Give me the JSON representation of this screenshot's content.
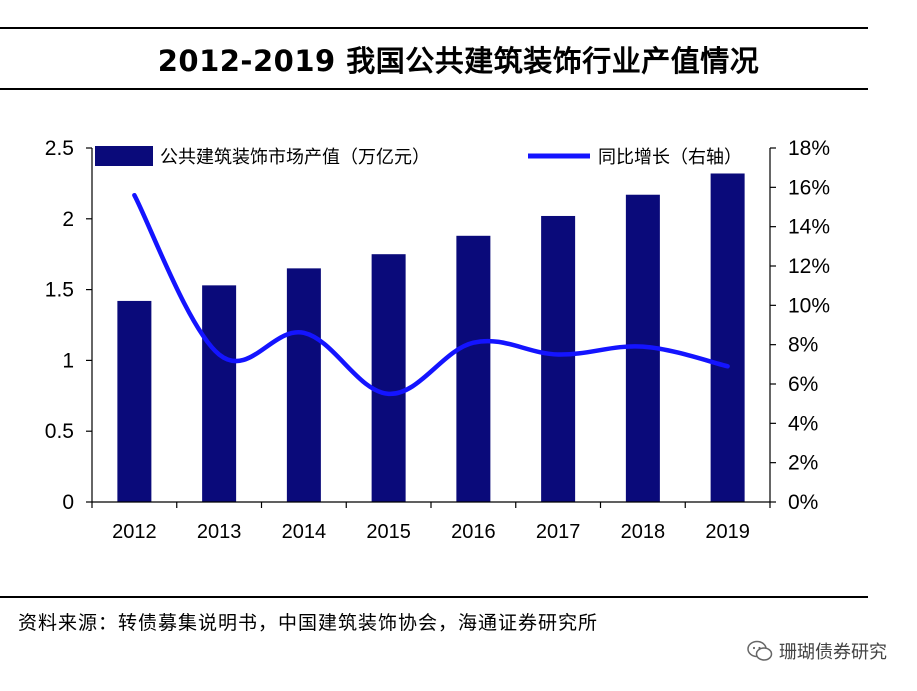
{
  "header": {
    "title": "2012-2019 我国公共建筑装饰行业产值情况"
  },
  "footer": {
    "source": "资料来源：转债募集说明书，中国建筑装饰协会，海通证券研究所",
    "watermark": "珊瑚债券研究"
  },
  "colors": {
    "bar": "#0a0a7a",
    "line": "#1414ff"
  },
  "chart_data": {
    "type": "bar",
    "title": "2012-2019 我国公共建筑装饰行业产值情况",
    "categories": [
      "2012",
      "2013",
      "2014",
      "2015",
      "2016",
      "2017",
      "2018",
      "2019"
    ],
    "series": [
      {
        "name": "公共建筑装饰市场产值（万亿元）",
        "type": "bar",
        "axis": "left",
        "values": [
          1.42,
          1.53,
          1.65,
          1.75,
          1.88,
          2.02,
          2.17,
          2.32
        ]
      },
      {
        "name": "同比增长（右轴）",
        "type": "line",
        "axis": "right",
        "values": [
          0.156,
          0.075,
          0.086,
          0.055,
          0.081,
          0.075,
          0.079,
          0.069
        ]
      }
    ],
    "y_left": {
      "ylim": [
        0,
        2.5
      ],
      "ticks": [
        "0",
        "0.5",
        "1",
        "1.5",
        "2",
        "2.5"
      ]
    },
    "y_right": {
      "ylim": [
        0,
        0.18
      ],
      "ticks": [
        "0%",
        "2%",
        "4%",
        "6%",
        "8%",
        "10%",
        "12%",
        "14%",
        "16%",
        "18%"
      ]
    },
    "legend_position": "top",
    "grid": false
  }
}
